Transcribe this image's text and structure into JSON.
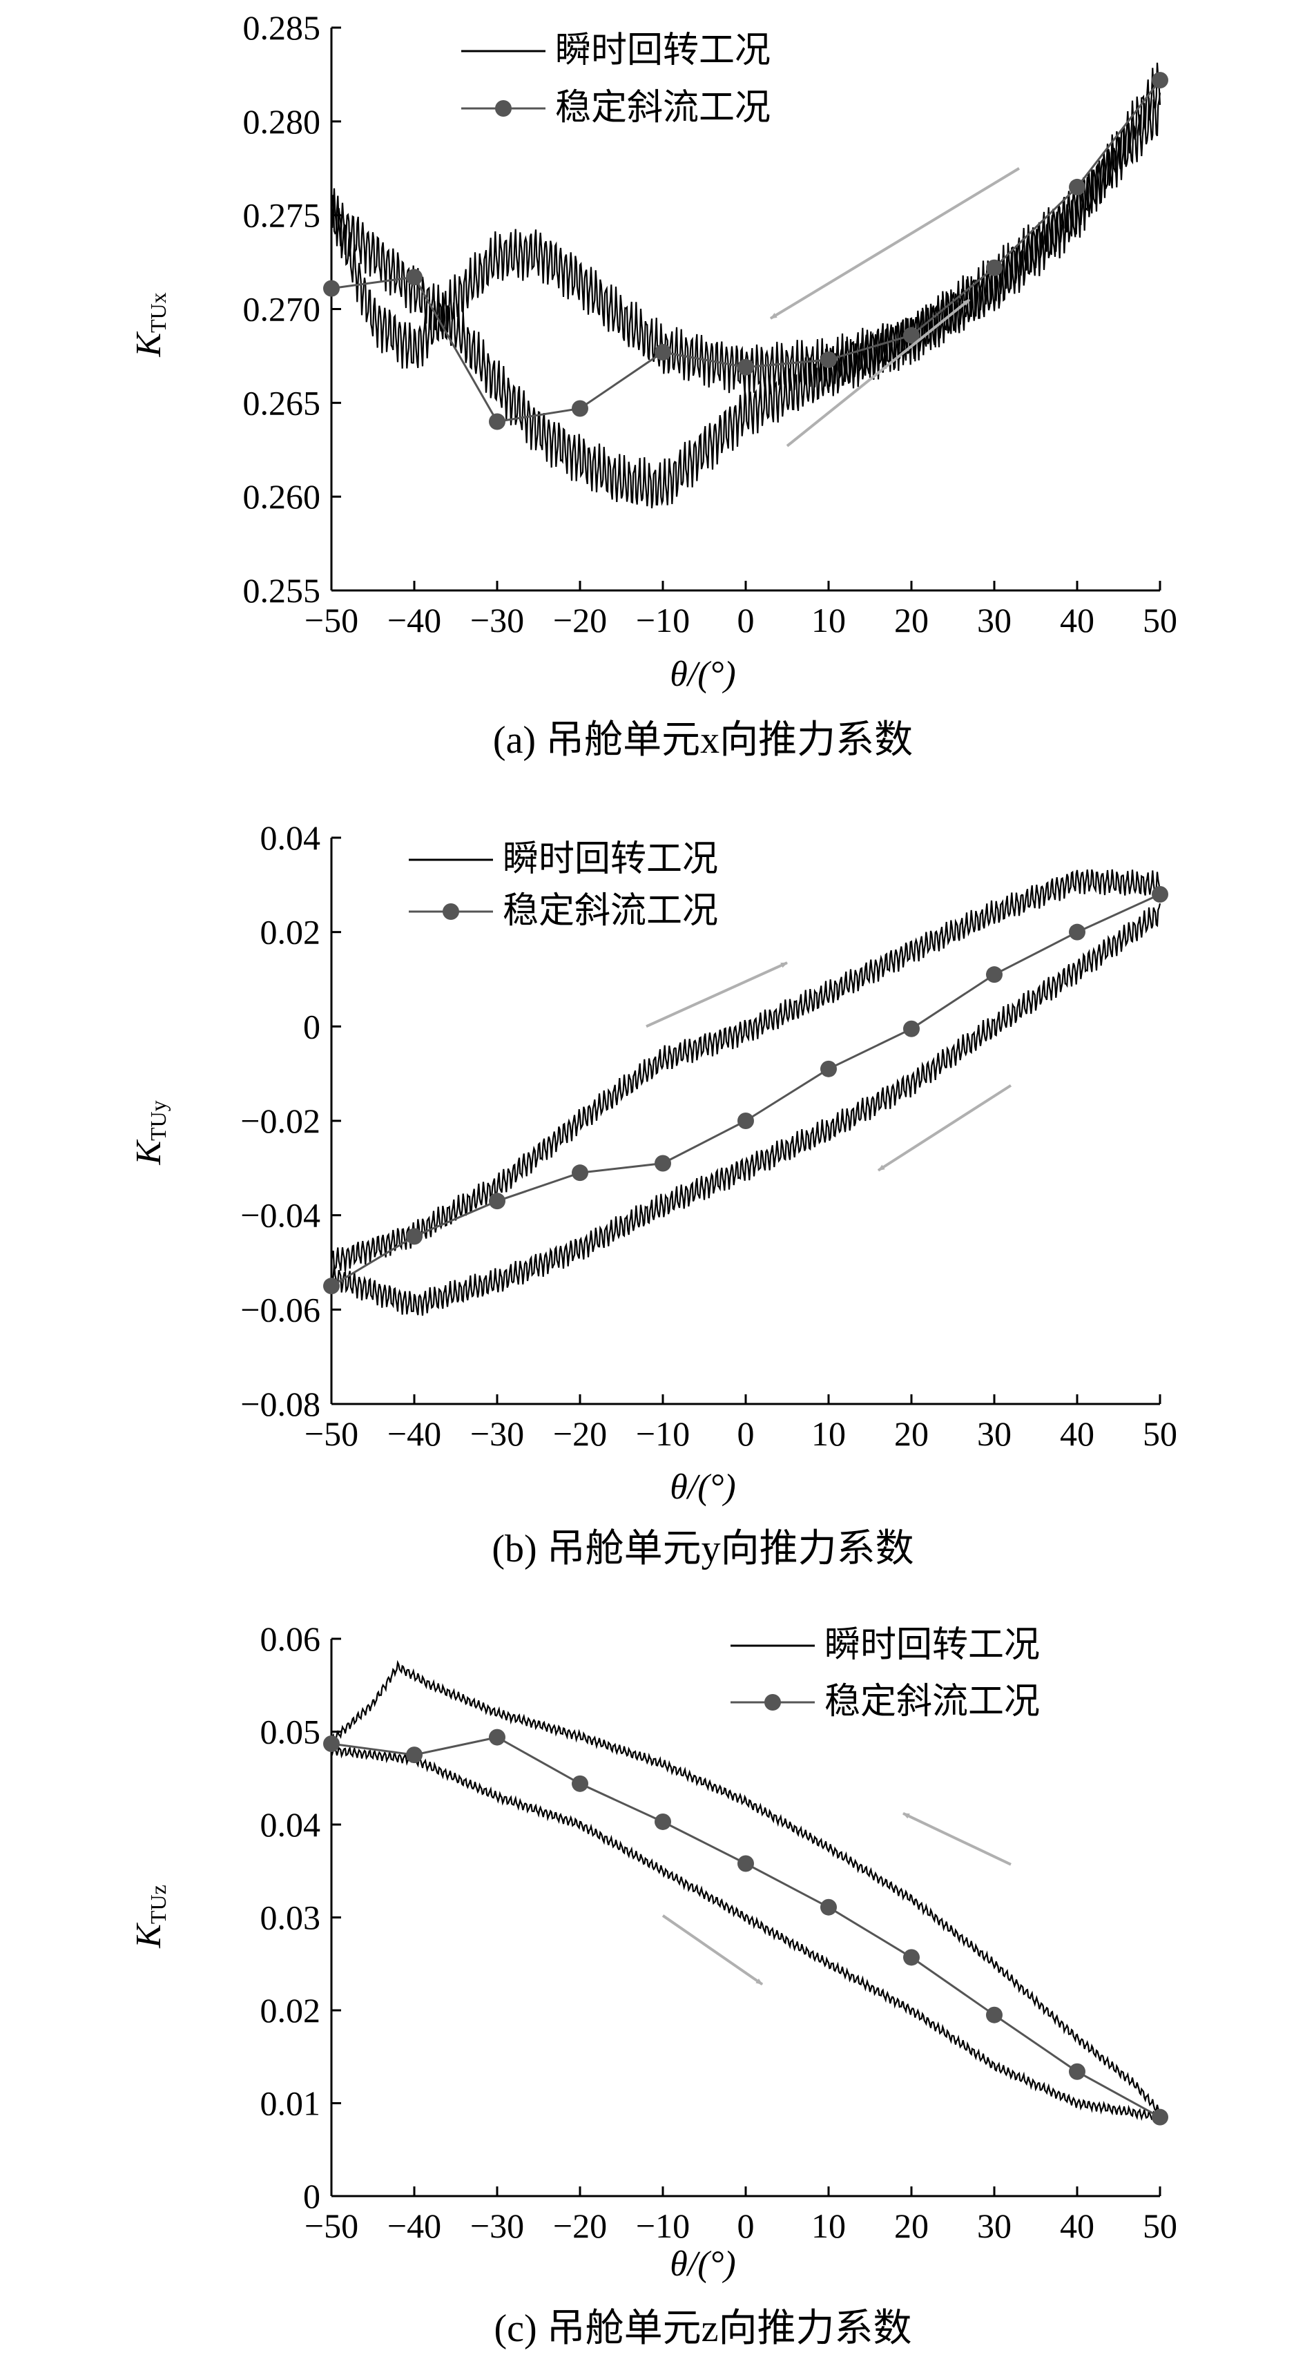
{
  "chart_data": [
    {
      "type": "line",
      "caption": "(a) 吊舱单元x向推力系数",
      "ylabel_main": "K",
      "ylabel_sub": "TUx",
      "xlabel": "θ/(°)",
      "xlim": [
        -50,
        50
      ],
      "ylim": [
        0.255,
        0.285
      ],
      "xticks": [
        -50,
        -40,
        -30,
        -20,
        -10,
        0,
        10,
        20,
        30,
        40,
        50
      ],
      "yticks": [
        0.255,
        0.26,
        0.265,
        0.27,
        0.275,
        0.28,
        0.285
      ],
      "xtick_labels": [
        "−50",
        "−40",
        "−30",
        "−20",
        "−10",
        "0",
        "10",
        "20",
        "30",
        "40",
        "50"
      ],
      "ytick_labels": [
        "0.255",
        "0.260",
        "0.265",
        "0.270",
        "0.275",
        "0.280",
        "0.285"
      ],
      "legend": [
        "瞬时回转工况",
        "稳定斜流工况"
      ],
      "legend_position": "top-center",
      "series": [
        {
          "name": "瞬时回转工况",
          "style": "oscillating line",
          "amplitude": 0.0011,
          "branch_increasing": {
            "x": [
              -50,
              -45,
              -40,
              -35,
              -30,
              -25,
              -20,
              -15,
              -10,
              -5,
              0,
              10,
              20,
              30,
              40,
              50
            ],
            "y": [
              0.275,
              0.273,
              0.271,
              0.269,
              0.266,
              0.2635,
              0.262,
              0.2608,
              0.2605,
              0.2625,
              0.2645,
              0.2665,
              0.2685,
              0.271,
              0.275,
              0.282
            ]
          },
          "branch_decreasing": {
            "x": [
              50,
              40,
              30,
              20,
              10,
              0,
              -10,
              -15,
              -20,
              -25,
              -30,
              -35,
              -40,
              -45,
              -50
            ],
            "y": [
              0.2805,
              0.2755,
              0.2715,
              0.2685,
              0.267,
              0.2668,
              0.2678,
              0.2695,
              0.2715,
              0.273,
              0.2728,
              0.2705,
              0.2678,
              0.2695,
              0.2755
            ]
          }
        },
        {
          "name": "稳定斜流工况",
          "style": "line with circle markers",
          "x": [
            -50,
            -40,
            -30,
            -20,
            -10,
            0,
            10,
            20,
            30,
            40,
            50
          ],
          "y": [
            0.2711,
            0.2717,
            0.264,
            0.2647,
            0.2677,
            0.2669,
            0.2673,
            0.2686,
            0.2722,
            0.2765,
            0.2822
          ]
        }
      ],
      "arrows": [
        {
          "direction": "decreasing θ",
          "from": [
            33,
            0.2775
          ],
          "to": [
            3,
            0.2695
          ]
        },
        {
          "direction": "increasing θ",
          "from": [
            5,
            0.2627
          ],
          "to": [
            27,
            0.2705
          ]
        }
      ]
    },
    {
      "type": "line",
      "caption": "(b) 吊舱单元y向推力系数",
      "ylabel_main": "K",
      "ylabel_sub": "TUy",
      "xlabel": "θ/(°)",
      "xlim": [
        -50,
        50
      ],
      "ylim": [
        -0.08,
        0.04
      ],
      "xticks": [
        -50,
        -40,
        -30,
        -20,
        -10,
        0,
        10,
        20,
        30,
        40,
        50
      ],
      "yticks": [
        -0.08,
        -0.06,
        -0.04,
        -0.02,
        0,
        0.02,
        0.04
      ],
      "xtick_labels": [
        "−50",
        "−40",
        "−30",
        "−20",
        "−10",
        "0",
        "10",
        "20",
        "30",
        "40",
        "50"
      ],
      "ytick_labels": [
        "−0.08",
        "−0.06",
        "−0.04",
        "−0.02",
        "0",
        "0.02",
        "0.04"
      ],
      "legend": [
        "瞬时回转工况",
        "稳定斜流工况"
      ],
      "legend_position": "top-left",
      "series": [
        {
          "name": "瞬时回转工况",
          "style": "oscillating line",
          "amplitude": 0.0022,
          "branch_increasing": {
            "x": [
              -50,
              -40,
              -30,
              -20,
              -10,
              0,
              10,
              20,
              30,
              40,
              50
            ],
            "y": [
              -0.05,
              -0.044,
              -0.034,
              -0.02,
              -0.007,
              -0.001,
              0.007,
              0.016,
              0.024,
              0.031,
              0.03
            ]
          },
          "branch_decreasing": {
            "x": [
              50,
              40,
              30,
              20,
              10,
              0,
              -10,
              -20,
              -30,
              -40,
              -50
            ],
            "y": [
              0.024,
              0.012,
              0,
              -0.012,
              -0.022,
              -0.03,
              -0.038,
              -0.047,
              -0.054,
              -0.059,
              -0.053
            ]
          }
        },
        {
          "name": "稳定斜流工况",
          "style": "line with circle markers",
          "x": [
            -50,
            -40,
            -30,
            -20,
            -10,
            0,
            10,
            20,
            30,
            40,
            50
          ],
          "y": [
            -0.055,
            -0.0445,
            -0.037,
            -0.031,
            -0.029,
            -0.02,
            -0.009,
            -0.0005,
            0.011,
            0.02,
            0.028
          ]
        }
      ],
      "arrows": [
        {
          "direction": "increasing θ",
          "from": [
            -12,
            0
          ],
          "to": [
            5,
            0.0135
          ]
        },
        {
          "direction": "decreasing θ",
          "from": [
            32,
            -0.0125
          ],
          "to": [
            16,
            -0.0305
          ]
        }
      ]
    },
    {
      "type": "line",
      "caption": "(c) 吊舱单元z向推力系数",
      "ylabel_main": "K",
      "ylabel_sub": "TUz",
      "xlabel": "θ/(°)",
      "xlim": [
        -50,
        50
      ],
      "ylim": [
        0,
        0.06
      ],
      "xticks": [
        -50,
        -40,
        -30,
        -20,
        -10,
        0,
        10,
        20,
        30,
        40,
        50
      ],
      "yticks": [
        0,
        0.01,
        0.02,
        0.03,
        0.04,
        0.05,
        0.06
      ],
      "xtick_labels": [
        "−50",
        "−40",
        "−30",
        "−20",
        "−10",
        "0",
        "10",
        "20",
        "30",
        "40",
        "50"
      ],
      "ytick_labels": [
        "0",
        "0.01",
        "0.02",
        "0.03",
        "0.04",
        "0.05",
        "0.06"
      ],
      "legend": [
        "瞬时回转工况",
        "稳定斜流工况"
      ],
      "legend_position": "top-right",
      "series": [
        {
          "name": "瞬时回转工况",
          "style": "oscillating line",
          "amplitude": 0.0004,
          "branch_upper": {
            "x": [
              -50,
              -45,
              -42,
              -38,
              -30,
              -20,
              -10,
              0,
              10,
              20,
              30,
              40,
              47,
              50
            ],
            "y": [
              0.049,
              0.053,
              0.057,
              0.055,
              0.052,
              0.0495,
              0.0465,
              0.0425,
              0.0375,
              0.032,
              0.025,
              0.017,
              0.012,
              0.009
            ]
          },
          "branch_lower": {
            "x": [
              50,
              40,
              30,
              20,
              10,
              0,
              -10,
              -20,
              -30,
              -40,
              -50
            ],
            "y": [
              0.0085,
              0.01,
              0.014,
              0.02,
              0.025,
              0.03,
              0.035,
              0.04,
              0.043,
              0.047,
              0.048
            ]
          }
        },
        {
          "name": "稳定斜流工况",
          "style": "line with circle markers",
          "x": [
            -50,
            -40,
            -30,
            -20,
            -10,
            0,
            10,
            20,
            30,
            40,
            50
          ],
          "y": [
            0.0487,
            0.0475,
            0.0494,
            0.0444,
            0.0403,
            0.0358,
            0.0311,
            0.0257,
            0.0195,
            0.0134,
            0.0085
          ]
        }
      ],
      "arrows": [
        {
          "direction": "decreasing θ",
          "from": [
            32,
            0.0357
          ],
          "to": [
            19,
            0.0412
          ]
        },
        {
          "direction": "increasing θ",
          "from": [
            -10,
            0.0302
          ],
          "to": [
            2,
            0.0228
          ]
        }
      ]
    }
  ],
  "colors": {
    "instant_line": "#000000",
    "steady_line": "#555555",
    "steady_marker": "#555555",
    "arrow": "#b0b0b0",
    "axis": "#000000"
  }
}
